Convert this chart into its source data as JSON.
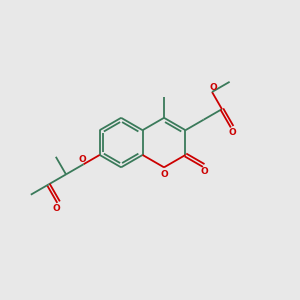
{
  "bg_color": "#e8e8e8",
  "bond_color": "#3a7a5a",
  "oxygen_color": "#cc0000",
  "line_width": 1.3,
  "figsize": [
    3.0,
    3.0
  ],
  "dpi": 100,
  "xlim": [
    0,
    12
  ],
  "ylim": [
    0,
    12
  ]
}
